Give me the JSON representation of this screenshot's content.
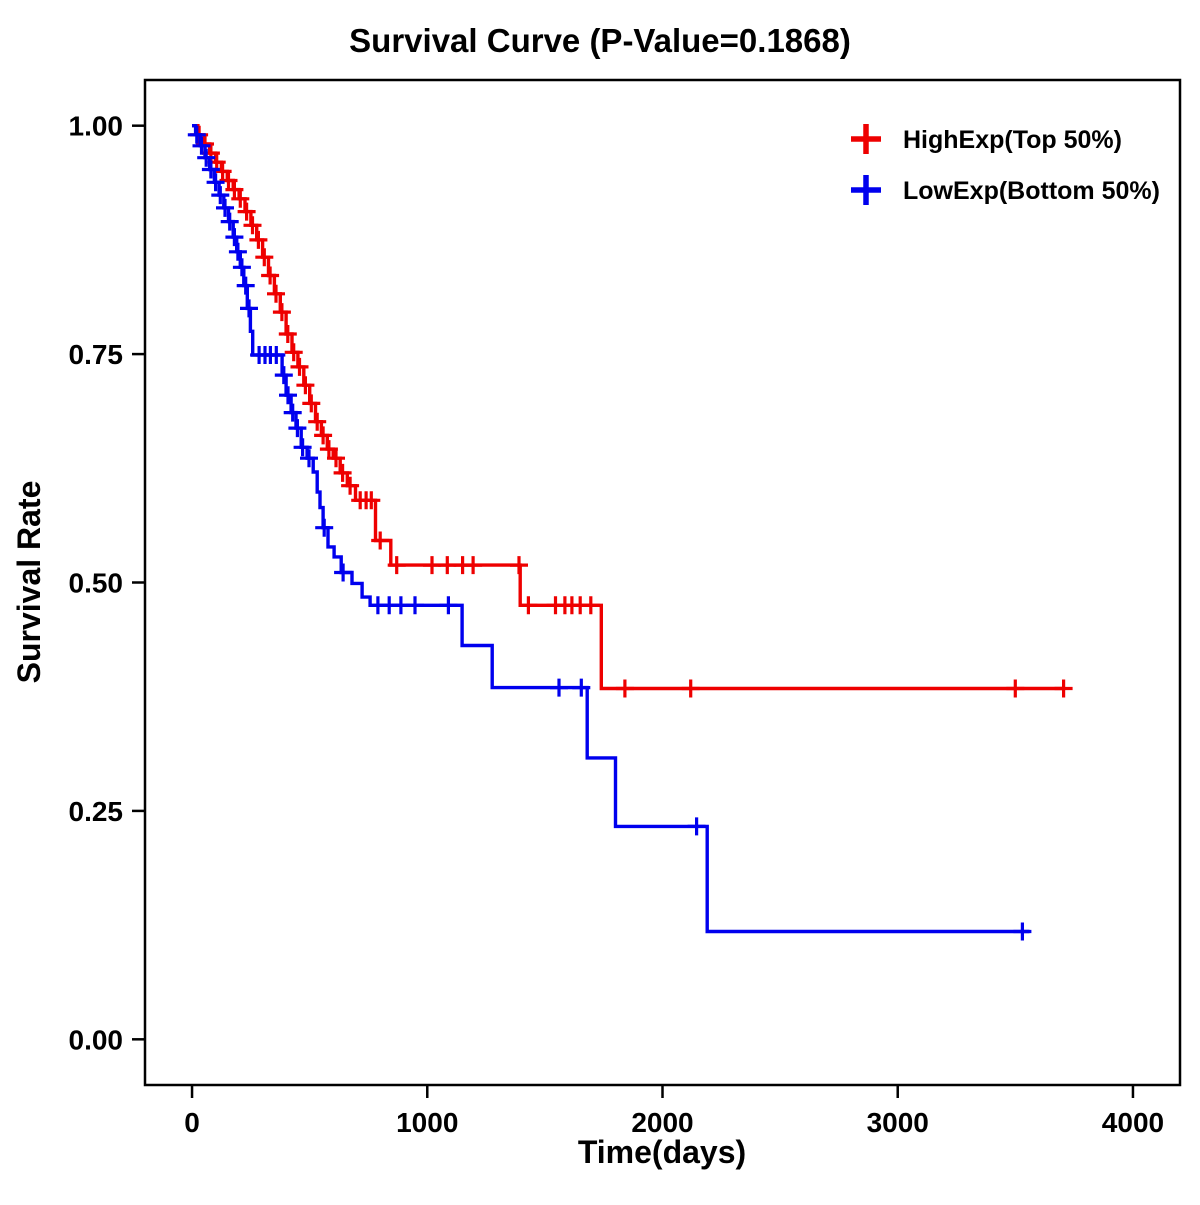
{
  "page": {
    "background": "#ffffff"
  },
  "chart_data": {
    "type": "line",
    "subtype": "kaplan-meier-step-survival",
    "title": "Survival Curve (P-Value=0.1868)",
    "p_value": "0.1868",
    "xlabel": "Time(days)",
    "ylabel": "Survival Rate",
    "xlim": [
      -200,
      4200
    ],
    "ylim": [
      -0.05,
      1.05
    ],
    "grid": false,
    "legend_position": "top-right-inside",
    "xticks": [
      {
        "v": 0,
        "label": "0"
      },
      {
        "v": 1000,
        "label": "1000"
      },
      {
        "v": 2000,
        "label": "2000"
      },
      {
        "v": 3000,
        "label": "3000"
      },
      {
        "v": 4000,
        "label": "4000"
      }
    ],
    "yticks": [
      {
        "v": 0.0,
        "label": "0.00"
      },
      {
        "v": 0.25,
        "label": "0.25"
      },
      {
        "v": 0.5,
        "label": "0.50"
      },
      {
        "v": 0.75,
        "label": "0.75"
      },
      {
        "v": 1.0,
        "label": "1.00"
      }
    ],
    "series": [
      {
        "id": "highexp",
        "name": "HighExp(Top 50%)",
        "color": "#EE0000",
        "steps": [
          [
            0,
            1.0
          ],
          [
            25,
            0.99
          ],
          [
            50,
            0.98
          ],
          [
            75,
            0.97
          ],
          [
            100,
            0.96
          ],
          [
            125,
            0.95
          ],
          [
            150,
            0.94
          ],
          [
            175,
            0.93
          ],
          [
            200,
            0.92
          ],
          [
            225,
            0.906
          ],
          [
            250,
            0.891
          ],
          [
            275,
            0.875
          ],
          [
            300,
            0.856
          ],
          [
            325,
            0.836
          ],
          [
            350,
            0.816
          ],
          [
            375,
            0.796
          ],
          [
            400,
            0.772
          ],
          [
            425,
            0.752
          ],
          [
            450,
            0.736
          ],
          [
            475,
            0.716
          ],
          [
            500,
            0.696
          ],
          [
            525,
            0.676
          ],
          [
            550,
            0.661
          ],
          [
            575,
            0.646
          ],
          [
            600,
            0.636
          ],
          [
            630,
            0.62
          ],
          [
            660,
            0.606
          ],
          [
            695,
            0.59
          ],
          [
            780,
            0.546
          ],
          [
            845,
            0.519
          ],
          [
            1395,
            0.475
          ],
          [
            1740,
            0.384
          ],
          [
            3712,
            0.384
          ]
        ],
        "censors": [
          [
            30,
            0.99
          ],
          [
            55,
            0.98
          ],
          [
            80,
            0.97
          ],
          [
            105,
            0.96
          ],
          [
            130,
            0.95
          ],
          [
            155,
            0.94
          ],
          [
            180,
            0.93
          ],
          [
            205,
            0.92
          ],
          [
            232,
            0.906
          ],
          [
            257,
            0.891
          ],
          [
            282,
            0.875
          ],
          [
            307,
            0.856
          ],
          [
            332,
            0.836
          ],
          [
            357,
            0.816
          ],
          [
            382,
            0.796
          ],
          [
            407,
            0.772
          ],
          [
            432,
            0.752
          ],
          [
            457,
            0.736
          ],
          [
            482,
            0.716
          ],
          [
            507,
            0.696
          ],
          [
            532,
            0.676
          ],
          [
            557,
            0.661
          ],
          [
            582,
            0.646
          ],
          [
            612,
            0.636
          ],
          [
            640,
            0.62
          ],
          [
            672,
            0.606
          ],
          [
            715,
            0.59
          ],
          [
            740,
            0.59
          ],
          [
            762,
            0.59
          ],
          [
            800,
            0.546
          ],
          [
            870,
            0.519
          ],
          [
            1020,
            0.519
          ],
          [
            1085,
            0.519
          ],
          [
            1150,
            0.519
          ],
          [
            1195,
            0.519
          ],
          [
            1390,
            0.519
          ],
          [
            1430,
            0.475
          ],
          [
            1545,
            0.475
          ],
          [
            1585,
            0.475
          ],
          [
            1615,
            0.475
          ],
          [
            1650,
            0.475
          ],
          [
            1695,
            0.475
          ],
          [
            1840,
            0.384
          ],
          [
            2120,
            0.384
          ],
          [
            3500,
            0.384
          ],
          [
            3705,
            0.384
          ]
        ]
      },
      {
        "id": "lowexp",
        "name": "LowExp(Bottom 50%)",
        "color": "#0000EE",
        "steps": [
          [
            0,
            1.0
          ],
          [
            15,
            0.99
          ],
          [
            35,
            0.978
          ],
          [
            55,
            0.965
          ],
          [
            75,
            0.952
          ],
          [
            95,
            0.938
          ],
          [
            115,
            0.924
          ],
          [
            135,
            0.91
          ],
          [
            155,
            0.895
          ],
          [
            175,
            0.878
          ],
          [
            190,
            0.862
          ],
          [
            205,
            0.845
          ],
          [
            220,
            0.825
          ],
          [
            235,
            0.8
          ],
          [
            248,
            0.775
          ],
          [
            258,
            0.749
          ],
          [
            383,
            0.727
          ],
          [
            400,
            0.705
          ],
          [
            421,
            0.686
          ],
          [
            442,
            0.669
          ],
          [
            464,
            0.648
          ],
          [
            489,
            0.636
          ],
          [
            515,
            0.621
          ],
          [
            532,
            0.599
          ],
          [
            544,
            0.582
          ],
          [
            557,
            0.56
          ],
          [
            578,
            0.539
          ],
          [
            604,
            0.528
          ],
          [
            634,
            0.511
          ],
          [
            680,
            0.499
          ],
          [
            723,
            0.484
          ],
          [
            757,
            0.475
          ],
          [
            1148,
            0.431
          ],
          [
            1276,
            0.385
          ],
          [
            1680,
            0.308
          ],
          [
            1800,
            0.233
          ],
          [
            2190,
            0.118
          ],
          [
            3560,
            0.118
          ]
        ],
        "censors": [
          [
            20,
            0.99
          ],
          [
            40,
            0.978
          ],
          [
            60,
            0.965
          ],
          [
            80,
            0.952
          ],
          [
            100,
            0.938
          ],
          [
            120,
            0.924
          ],
          [
            140,
            0.91
          ],
          [
            160,
            0.895
          ],
          [
            180,
            0.878
          ],
          [
            195,
            0.862
          ],
          [
            212,
            0.845
          ],
          [
            228,
            0.825
          ],
          [
            242,
            0.8
          ],
          [
            285,
            0.749
          ],
          [
            310,
            0.749
          ],
          [
            333,
            0.749
          ],
          [
            358,
            0.749
          ],
          [
            390,
            0.727
          ],
          [
            408,
            0.705
          ],
          [
            428,
            0.686
          ],
          [
            448,
            0.669
          ],
          [
            470,
            0.648
          ],
          [
            497,
            0.636
          ],
          [
            562,
            0.56
          ],
          [
            642,
            0.511
          ],
          [
            790,
            0.475
          ],
          [
            838,
            0.475
          ],
          [
            888,
            0.475
          ],
          [
            948,
            0.475
          ],
          [
            1090,
            0.475
          ],
          [
            1560,
            0.385
          ],
          [
            1655,
            0.385
          ],
          [
            2145,
            0.233
          ],
          [
            3530,
            0.118
          ]
        ]
      }
    ]
  }
}
